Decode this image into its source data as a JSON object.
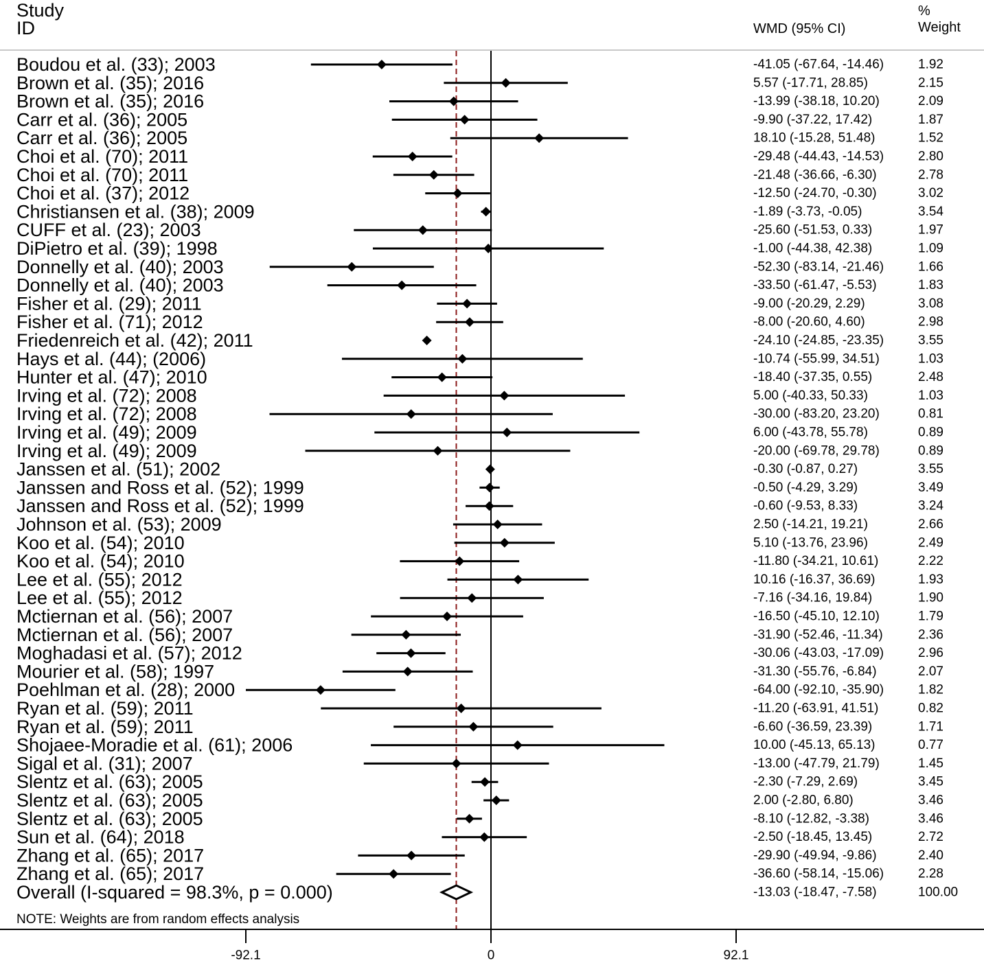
{
  "header": {
    "study_line1": "Study",
    "study_line2": "ID",
    "wmd_col": "WMD (95% CI)",
    "weight_line1": "%",
    "weight_line2": "Weight"
  },
  "note": "NOTE: Weights are from random effects analysis",
  "colors": {
    "ink": "#000000",
    "null_ref_line": "#8b1a1a"
  },
  "chart_data": {
    "type": "forest",
    "xlim": [
      -92.1,
      92.1
    ],
    "ticks": [
      "-92.1",
      "0",
      "92.1"
    ],
    "tick_values": [
      -92.1,
      0,
      92.1
    ],
    "reference_line": 0,
    "overall_line": -13.03,
    "studies": [
      {
        "label": "Boudou  et al. (33); 2003",
        "wmd": -41.05,
        "lo": -67.64,
        "hi": -14.46,
        "ci_text": "-41.05 (-67.64, -14.46)",
        "weight": "1.92"
      },
      {
        "label": "Brown  et al. (35); 2016",
        "wmd": 5.57,
        "lo": -17.71,
        "hi": 28.85,
        "ci_text": "5.57 (-17.71, 28.85)",
        "weight": "2.15"
      },
      {
        "label": "Brown  et al. (35); 2016",
        "wmd": -13.99,
        "lo": -38.18,
        "hi": 10.2,
        "ci_text": "-13.99 (-38.18, 10.20)",
        "weight": "2.09"
      },
      {
        "label": "Carr  et al. (36); 2005",
        "wmd": -9.9,
        "lo": -37.22,
        "hi": 17.42,
        "ci_text": "-9.90 (-37.22, 17.42)",
        "weight": "1.87"
      },
      {
        "label": "Carr  et al. (36); 2005",
        "wmd": 18.1,
        "lo": -15.28,
        "hi": 51.48,
        "ci_text": "18.10 (-15.28, 51.48)",
        "weight": "1.52"
      },
      {
        "label": "Choi  et al. (70); 2011",
        "wmd": -29.48,
        "lo": -44.43,
        "hi": -14.53,
        "ci_text": "-29.48 (-44.43, -14.53)",
        "weight": "2.80"
      },
      {
        "label": "Choi  et al. (70); 2011",
        "wmd": -21.48,
        "lo": -36.66,
        "hi": -6.3,
        "ci_text": "-21.48 (-36.66, -6.30)",
        "weight": "2.78"
      },
      {
        "label": "Choi  et al. (37); 2012",
        "wmd": -12.5,
        "lo": -24.7,
        "hi": -0.3,
        "ci_text": "-12.50 (-24.70, -0.30)",
        "weight": "3.02"
      },
      {
        "label": "Christiansen et al. (38); 2009",
        "wmd": -1.89,
        "lo": -3.73,
        "hi": -0.05,
        "ci_text": "-1.89 (-3.73, -0.05)",
        "weight": "3.54"
      },
      {
        "label": "CUFF  et al. (23); 2003",
        "wmd": -25.6,
        "lo": -51.53,
        "hi": 0.33,
        "ci_text": "-25.60 (-51.53, 0.33)",
        "weight": "1.97"
      },
      {
        "label": "DiPietro  et al. (39); 1998",
        "wmd": -1.0,
        "lo": -44.38,
        "hi": 42.38,
        "ci_text": "-1.00 (-44.38, 42.38)",
        "weight": "1.09"
      },
      {
        "label": "Donnelly  et al. (40);  2003",
        "wmd": -52.3,
        "lo": -83.14,
        "hi": -21.46,
        "ci_text": "-52.30 (-83.14, -21.46)",
        "weight": "1.66"
      },
      {
        "label": "Donnelly  et al. (40);  2003",
        "wmd": -33.5,
        "lo": -61.47,
        "hi": -5.53,
        "ci_text": "-33.50 (-61.47, -5.53)",
        "weight": "1.83"
      },
      {
        "label": "Fisher  et al. (29); 2011",
        "wmd": -9.0,
        "lo": -20.29,
        "hi": 2.29,
        "ci_text": "-9.00 (-20.29, 2.29)",
        "weight": "3.08"
      },
      {
        "label": "Fisher  et al. (71); 2012",
        "wmd": -8.0,
        "lo": -20.6,
        "hi": 4.6,
        "ci_text": "-8.00 (-20.60, 4.60)",
        "weight": "2.98"
      },
      {
        "label": "Friedenreich  et al. (42); 2011",
        "wmd": -24.1,
        "lo": -24.85,
        "hi": -23.35,
        "ci_text": "-24.10 (-24.85, -23.35)",
        "weight": "3.55"
      },
      {
        "label": "Hays  et al. (44); (2006)",
        "wmd": -10.74,
        "lo": -55.99,
        "hi": 34.51,
        "ci_text": "-10.74 (-55.99, 34.51)",
        "weight": "1.03"
      },
      {
        "label": "Hunter  et al. (47); 2010",
        "wmd": -18.4,
        "lo": -37.35,
        "hi": 0.55,
        "ci_text": "-18.40 (-37.35, 0.55)",
        "weight": "2.48"
      },
      {
        "label": "Irving et al. (72); 2008",
        "wmd": 5.0,
        "lo": -40.33,
        "hi": 50.33,
        "ci_text": "5.00 (-40.33, 50.33)",
        "weight": "1.03"
      },
      {
        "label": "Irving et al. (72); 2008",
        "wmd": -30.0,
        "lo": -83.2,
        "hi": 23.2,
        "ci_text": "-30.00 (-83.20, 23.20)",
        "weight": "0.81"
      },
      {
        "label": "Irving et al. (49); 2009",
        "wmd": 6.0,
        "lo": -43.78,
        "hi": 55.78,
        "ci_text": "6.00 (-43.78, 55.78)",
        "weight": "0.89"
      },
      {
        "label": "Irving et al. (49); 2009",
        "wmd": -20.0,
        "lo": -69.78,
        "hi": 29.78,
        "ci_text": "-20.00 (-69.78, 29.78)",
        "weight": "0.89"
      },
      {
        "label": "Janssen et al. (51); 2002",
        "wmd": -0.3,
        "lo": -0.87,
        "hi": 0.27,
        "ci_text": "-0.30 (-0.87, 0.27)",
        "weight": "3.55"
      },
      {
        "label": "Janssen and Ross et al. (52); 1999",
        "wmd": -0.5,
        "lo": -4.29,
        "hi": 3.29,
        "ci_text": "-0.50 (-4.29, 3.29)",
        "weight": "3.49"
      },
      {
        "label": "Janssen and Ross et al. (52); 1999",
        "wmd": -0.6,
        "lo": -9.53,
        "hi": 8.33,
        "ci_text": "-0.60 (-9.53, 8.33)",
        "weight": "3.24"
      },
      {
        "label": "Johnson et al. (53); 2009",
        "wmd": 2.5,
        "lo": -14.21,
        "hi": 19.21,
        "ci_text": "2.50 (-14.21, 19.21)",
        "weight": "2.66"
      },
      {
        "label": "Koo et al. (54); 2010",
        "wmd": 5.1,
        "lo": -13.76,
        "hi": 23.96,
        "ci_text": "5.10 (-13.76, 23.96)",
        "weight": "2.49"
      },
      {
        "label": "Koo et al. (54); 2010",
        "wmd": -11.8,
        "lo": -34.21,
        "hi": 10.61,
        "ci_text": "-11.80 (-34.21, 10.61)",
        "weight": "2.22"
      },
      {
        "label": "Lee et al. (55); 2012",
        "wmd": 10.16,
        "lo": -16.37,
        "hi": 36.69,
        "ci_text": "10.16 (-16.37, 36.69)",
        "weight": "1.93"
      },
      {
        "label": "Lee et al. (55); 2012",
        "wmd": -7.16,
        "lo": -34.16,
        "hi": 19.84,
        "ci_text": "-7.16 (-34.16, 19.84)",
        "weight": "1.90"
      },
      {
        "label": "Mctiernan et al. (56); 2007",
        "wmd": -16.5,
        "lo": -45.1,
        "hi": 12.1,
        "ci_text": "-16.50 (-45.10, 12.10)",
        "weight": "1.79"
      },
      {
        "label": "Mctiernan et al. (56); 2007",
        "wmd": -31.9,
        "lo": -52.46,
        "hi": -11.34,
        "ci_text": "-31.90 (-52.46, -11.34)",
        "weight": "2.36"
      },
      {
        "label": "Moghadasi et al. (57); 2012",
        "wmd": -30.06,
        "lo": -43.03,
        "hi": -17.09,
        "ci_text": "-30.06 (-43.03, -17.09)",
        "weight": "2.96"
      },
      {
        "label": "Mourier et al. (58); 1997",
        "wmd": -31.3,
        "lo": -55.76,
        "hi": -6.84,
        "ci_text": "-31.30 (-55.76, -6.84)",
        "weight": "2.07"
      },
      {
        "label": "Poehlman et al. (28); 2000",
        "wmd": -64.0,
        "lo": -92.1,
        "hi": -35.9,
        "ci_text": "-64.00 (-92.10, -35.90)",
        "weight": "1.82"
      },
      {
        "label": "Ryan et al. (59); 2011",
        "wmd": -11.2,
        "lo": -63.91,
        "hi": 41.51,
        "ci_text": "-11.20 (-63.91, 41.51)",
        "weight": "0.82"
      },
      {
        "label": "Ryan et al. (59); 2011",
        "wmd": -6.6,
        "lo": -36.59,
        "hi": 23.39,
        "ci_text": "-6.60 (-36.59, 23.39)",
        "weight": "1.71"
      },
      {
        "label": "Shojaee-Moradie et al. (61); 2006",
        "wmd": 10.0,
        "lo": -45.13,
        "hi": 65.13,
        "ci_text": "10.00 (-45.13, 65.13)",
        "weight": "0.77"
      },
      {
        "label": "Sigal et al. (31); 2007",
        "wmd": -13.0,
        "lo": -47.79,
        "hi": 21.79,
        "ci_text": "-13.00 (-47.79, 21.79)",
        "weight": "1.45"
      },
      {
        "label": "Slentz et al. (63); 2005",
        "wmd": -2.3,
        "lo": -7.29,
        "hi": 2.69,
        "ci_text": "-2.30 (-7.29, 2.69)",
        "weight": "3.45"
      },
      {
        "label": "Slentz et al. (63); 2005",
        "wmd": 2.0,
        "lo": -2.8,
        "hi": 6.8,
        "ci_text": "2.00 (-2.80, 6.80)",
        "weight": "3.46"
      },
      {
        "label": "Slentz et al. (63); 2005",
        "wmd": -8.1,
        "lo": -12.82,
        "hi": -3.38,
        "ci_text": "-8.10 (-12.82, -3.38)",
        "weight": "3.46"
      },
      {
        "label": "Sun et al. (64); 2018",
        "wmd": -2.5,
        "lo": -18.45,
        "hi": 13.45,
        "ci_text": "-2.50 (-18.45, 13.45)",
        "weight": "2.72"
      },
      {
        "label": "Zhang et al. (65); 2017",
        "wmd": -29.9,
        "lo": -49.94,
        "hi": -9.86,
        "ci_text": "-29.90 (-49.94, -9.86)",
        "weight": "2.40"
      },
      {
        "label": "Zhang et al. (65);  2017",
        "wmd": -36.6,
        "lo": -58.14,
        "hi": -15.06,
        "ci_text": "-36.60 (-58.14, -15.06)",
        "weight": "2.28"
      }
    ],
    "overall": {
      "label": "Overall  (I-squared = 98.3%, p = 0.000)",
      "wmd": -13.03,
      "lo": -18.47,
      "hi": -7.58,
      "ci_text": "-13.03 (-18.47, -7.58)",
      "weight": "100.00"
    }
  }
}
